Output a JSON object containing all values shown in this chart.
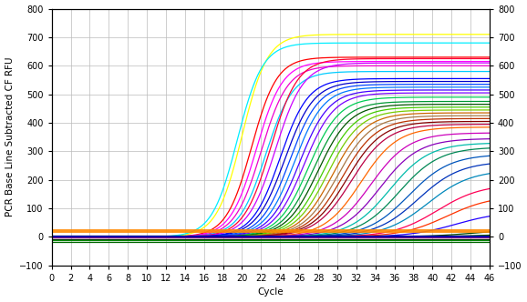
{
  "xlabel": "Cycle",
  "ylabel": "PCR Base Line Subtracted CF RFU",
  "xlim": [
    0,
    46
  ],
  "ylim": [
    -100,
    800
  ],
  "yticks": [
    -100,
    0,
    100,
    200,
    300,
    400,
    500,
    600,
    700,
    800
  ],
  "xticks": [
    0,
    2,
    4,
    6,
    8,
    10,
    12,
    14,
    16,
    18,
    20,
    22,
    24,
    26,
    28,
    30,
    32,
    34,
    36,
    38,
    40,
    42,
    44,
    46
  ],
  "background_color": "#ffffff",
  "grid_color": "#bbbbbb",
  "threshold_line_color": "#ff8800",
  "threshold_value": 20,
  "curves": [
    {
      "midpoint": 21.0,
      "plateau": 630,
      "slope": 0.75,
      "color": "#ff0000",
      "lw": 0.9
    },
    {
      "midpoint": 21.5,
      "plateau": 615,
      "slope": 0.73,
      "color": "#ff00ff",
      "lw": 0.9
    },
    {
      "midpoint": 22.0,
      "plateau": 600,
      "slope": 0.72,
      "color": "#ee00cc",
      "lw": 0.9
    },
    {
      "midpoint": 22.5,
      "plateau": 580,
      "slope": 0.7,
      "color": "#00ccff",
      "lw": 0.9
    },
    {
      "midpoint": 23.0,
      "plateau": 625,
      "slope": 0.7,
      "color": "#ff0033",
      "lw": 0.9
    },
    {
      "midpoint": 23.5,
      "plateau": 610,
      "slope": 0.68,
      "color": "#cc00ff",
      "lw": 0.9
    },
    {
      "midpoint": 20.0,
      "plateau": 710,
      "slope": 0.75,
      "color": "#ffff00",
      "lw": 0.9
    },
    {
      "midpoint": 19.5,
      "plateau": 680,
      "slope": 0.75,
      "color": "#00eeff",
      "lw": 0.9
    },
    {
      "midpoint": 24.0,
      "plateau": 555,
      "slope": 0.68,
      "color": "#0000ff",
      "lw": 0.9
    },
    {
      "midpoint": 24.5,
      "plateau": 545,
      "slope": 0.66,
      "color": "#0000cc",
      "lw": 0.9
    },
    {
      "midpoint": 25.0,
      "plateau": 535,
      "slope": 0.66,
      "color": "#0044ff",
      "lw": 0.9
    },
    {
      "midpoint": 25.5,
      "plateau": 525,
      "slope": 0.65,
      "color": "#0077ff",
      "lw": 0.9
    },
    {
      "midpoint": 26.0,
      "plateau": 515,
      "slope": 0.64,
      "color": "#4400ff",
      "lw": 0.9
    },
    {
      "midpoint": 26.5,
      "plateau": 505,
      "slope": 0.63,
      "color": "#7700ff",
      "lw": 0.9
    },
    {
      "midpoint": 27.0,
      "plateau": 490,
      "slope": 0.62,
      "color": "#00cc55",
      "lw": 0.9
    },
    {
      "midpoint": 27.5,
      "plateau": 475,
      "slope": 0.61,
      "color": "#009933",
      "lw": 0.9
    },
    {
      "midpoint": 28.0,
      "plateau": 465,
      "slope": 0.6,
      "color": "#005500",
      "lw": 0.9
    },
    {
      "midpoint": 28.5,
      "plateau": 455,
      "slope": 0.59,
      "color": "#44cc00",
      "lw": 0.9
    },
    {
      "midpoint": 29.0,
      "plateau": 445,
      "slope": 0.58,
      "color": "#77cc00",
      "lw": 0.9
    },
    {
      "midpoint": 29.5,
      "plateau": 435,
      "slope": 0.57,
      "color": "#cc6600",
      "lw": 0.9
    },
    {
      "midpoint": 30.0,
      "plateau": 425,
      "slope": 0.56,
      "color": "#aa7744",
      "lw": 0.9
    },
    {
      "midpoint": 30.5,
      "plateau": 415,
      "slope": 0.55,
      "color": "#bb3300",
      "lw": 0.9
    },
    {
      "midpoint": 31.0,
      "plateau": 405,
      "slope": 0.54,
      "color": "#880000",
      "lw": 0.9
    },
    {
      "midpoint": 31.5,
      "plateau": 395,
      "slope": 0.53,
      "color": "#bb0044",
      "lw": 0.9
    },
    {
      "midpoint": 32.5,
      "plateau": 385,
      "slope": 0.52,
      "color": "#ff6600",
      "lw": 0.9
    },
    {
      "midpoint": 33.5,
      "plateau": 365,
      "slope": 0.5,
      "color": "#cc00bb",
      "lw": 0.9
    },
    {
      "midpoint": 34.5,
      "plateau": 345,
      "slope": 0.49,
      "color": "#8800bb",
      "lw": 0.9
    },
    {
      "midpoint": 35.5,
      "plateau": 330,
      "slope": 0.48,
      "color": "#00bbaa",
      "lw": 0.9
    },
    {
      "midpoint": 36.5,
      "plateau": 315,
      "slope": 0.47,
      "color": "#008855",
      "lw": 0.9
    },
    {
      "midpoint": 37.5,
      "plateau": 290,
      "slope": 0.46,
      "color": "#0055bb",
      "lw": 0.9
    },
    {
      "midpoint": 38.5,
      "plateau": 265,
      "slope": 0.45,
      "color": "#0033bb",
      "lw": 0.9
    },
    {
      "midpoint": 39.5,
      "plateau": 235,
      "slope": 0.44,
      "color": "#0088bb",
      "lw": 0.9
    },
    {
      "midpoint": 40.5,
      "plateau": 185,
      "slope": 0.43,
      "color": "#ff0055",
      "lw": 0.9
    },
    {
      "midpoint": 41.5,
      "plateau": 145,
      "slope": 0.42,
      "color": "#ff3300",
      "lw": 0.9
    },
    {
      "midpoint": 42.5,
      "plateau": 90,
      "slope": 0.41,
      "color": "#2200ff",
      "lw": 0.9
    },
    {
      "midpoint": 44.5,
      "plateau": 28,
      "slope": 0.38,
      "color": "#004400",
      "lw": 0.9
    },
    {
      "midpoint": 45.5,
      "plateau": 12,
      "slope": 0.36,
      "color": "#006600",
      "lw": 0.9
    }
  ],
  "flat_lines": [
    {
      "y": -12,
      "color": "#009900",
      "lw": 0.9
    },
    {
      "y": -18,
      "color": "#006600",
      "lw": 0.9
    },
    {
      "y": -7,
      "color": "#003300",
      "lw": 0.9
    },
    {
      "y": 4,
      "color": "#000088",
      "lw": 0.9
    },
    {
      "y": 1,
      "color": "#0000cc",
      "lw": 0.9
    },
    {
      "y": -2,
      "color": "#770077",
      "lw": 0.9
    }
  ],
  "tick_fontsize": 7,
  "label_fontsize": 7.5,
  "figsize": [
    5.78,
    3.32
  ],
  "dpi": 100
}
